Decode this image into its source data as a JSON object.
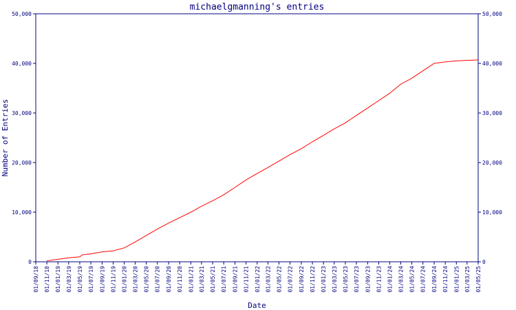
{
  "chart_data": {
    "type": "line",
    "title": "michaelgmanning's entries",
    "xlabel": "Date",
    "ylabel": "Number of Entries",
    "x_type": "date",
    "xlim": [
      "2018-09-01",
      "2025-05-01"
    ],
    "ylim": [
      0,
      50000
    ],
    "yticks": [
      0,
      10000,
      20000,
      30000,
      40000,
      50000
    ],
    "ytick_labels": [
      "0",
      "10,000",
      "20,000",
      "30,000",
      "40,000",
      "50,000"
    ],
    "xtick_labels": [
      "01/09/18",
      "01/11/18",
      "01/01/19",
      "01/03/19",
      "01/05/19",
      "01/07/19",
      "01/09/19",
      "01/11/19",
      "01/01/20",
      "01/03/20",
      "01/05/20",
      "01/07/20",
      "01/09/20",
      "01/11/20",
      "01/01/21",
      "01/03/21",
      "01/05/21",
      "01/07/21",
      "01/09/21",
      "01/11/21",
      "01/01/22",
      "01/03/22",
      "01/05/22",
      "01/07/22",
      "01/09/22",
      "01/11/22",
      "01/01/23",
      "01/03/23",
      "01/05/23",
      "01/07/23",
      "01/09/23",
      "01/11/23",
      "01/01/24",
      "01/03/24",
      "01/05/24",
      "01/07/24",
      "01/09/24",
      "01/11/24",
      "01/01/25",
      "01/03/25",
      "01/05/25"
    ],
    "right_axis": true,
    "grid": false,
    "legend": "none",
    "colors": {
      "line": "#ff0000",
      "axes": "#000080",
      "text": "#000080"
    },
    "series": [
      {
        "x": [
          "2018-11-01",
          "2019-01-01",
          "2019-03-01",
          "2019-05-01",
          "2019-05-15",
          "2019-07-01",
          "2019-09-01",
          "2019-11-01",
          "2020-01-01",
          "2020-03-01",
          "2020-05-01",
          "2020-07-01",
          "2020-09-01",
          "2020-11-01",
          "2021-01-01",
          "2021-03-01",
          "2021-05-01",
          "2021-07-01",
          "2021-09-01",
          "2021-11-01",
          "2022-01-01",
          "2022-03-01",
          "2022-05-01",
          "2022-07-01",
          "2022-09-01",
          "2022-11-01",
          "2023-01-01",
          "2023-03-01",
          "2023-05-01",
          "2023-07-01",
          "2023-09-01",
          "2023-11-01",
          "2024-01-01",
          "2024-03-01",
          "2024-05-01",
          "2024-07-01",
          "2024-09-01",
          "2024-11-01",
          "2025-01-01",
          "2025-03-01",
          "2025-05-01"
        ],
        "y": [
          200,
          500,
          800,
          1000,
          1400,
          1600,
          2000,
          2200,
          2800,
          4000,
          5300,
          6600,
          7800,
          8900,
          10000,
          11200,
          12300,
          13500,
          15000,
          16500,
          17800,
          19000,
          20300,
          21600,
          22800,
          24200,
          25500,
          26800,
          28000,
          29500,
          31000,
          32500,
          34000,
          35800,
          37000,
          38500,
          40000,
          40300,
          40500,
          40600,
          40700
        ]
      }
    ]
  }
}
